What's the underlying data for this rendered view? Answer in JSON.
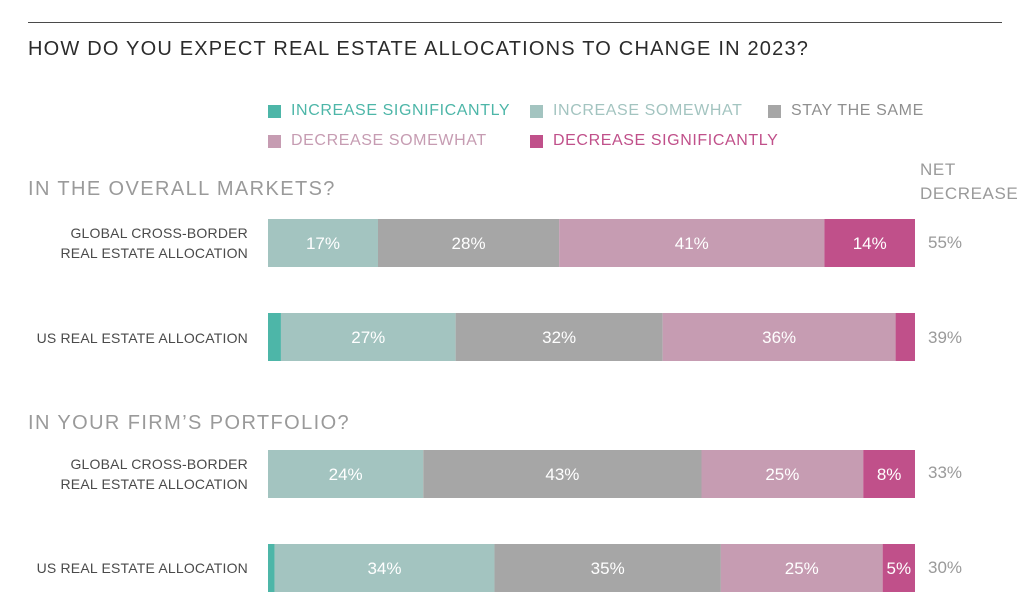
{
  "title": "HOW DO YOU EXPECT REAL ESTATE ALLOCATIONS TO CHANGE IN 2023?",
  "net_label_line1": "NET",
  "net_label_line2": "DECREASE",
  "legend": [
    {
      "label": "INCREASE SIGNIFICANTLY",
      "color": "#4db6a8"
    },
    {
      "label": "INCREASE SOMEWHAT",
      "color": "#a3c4c0"
    },
    {
      "label": "STAY THE SAME",
      "color": "#a6a6a6"
    },
    {
      "label": "DECREASE SOMEWHAT",
      "color": "#c69cb2"
    },
    {
      "label": "DECREASE SIGNIFICANTLY",
      "color": "#c0508a"
    }
  ],
  "chart_data": {
    "type": "bar",
    "orientation": "horizontal",
    "stacked": true,
    "percent_stacked": true,
    "title": "HOW DO YOU EXPECT REAL ESTATE ALLOCATIONS TO CHANGE IN 2023?",
    "legend_placement": "top",
    "grid": false,
    "series_names": [
      "INCREASE SIGNIFICANTLY",
      "INCREASE SOMEWHAT",
      "STAY THE SAME",
      "DECREASE SOMEWHAT",
      "DECREASE SIGNIFICANTLY"
    ],
    "groups": [
      {
        "title": "IN THE OVERALL MARKETS?",
        "rows": [
          {
            "label_lines": [
              "GLOBAL CROSS-BORDER",
              "REAL ESTATE ALLOCATION"
            ],
            "values": [
              0,
              17,
              28,
              41,
              14
            ],
            "labels": [
              "",
              "17%",
              "28%",
              "41%",
              "14%"
            ],
            "net": "55%"
          },
          {
            "label_lines": [
              "US REAL ESTATE ALLOCATION"
            ],
            "values": [
              2,
              27,
              32,
              36,
              3
            ],
            "labels": [
              "",
              "27%",
              "32%",
              "36%",
              ""
            ],
            "net": "39%"
          }
        ]
      },
      {
        "title": "IN YOUR FIRM’S PORTFOLIO?",
        "rows": [
          {
            "label_lines": [
              "GLOBAL CROSS-BORDER",
              "REAL ESTATE ALLOCATION"
            ],
            "values": [
              0,
              24,
              43,
              25,
              8
            ],
            "labels": [
              "",
              "24%",
              "43%",
              "25%",
              "8%"
            ],
            "net": "33%"
          },
          {
            "label_lines": [
              "US REAL ESTATE ALLOCATION"
            ],
            "values": [
              1,
              34,
              35,
              25,
              5
            ],
            "labels": [
              "",
              "34%",
              "35%",
              "25%",
              "5%"
            ],
            "net": "30%"
          }
        ]
      }
    ]
  }
}
